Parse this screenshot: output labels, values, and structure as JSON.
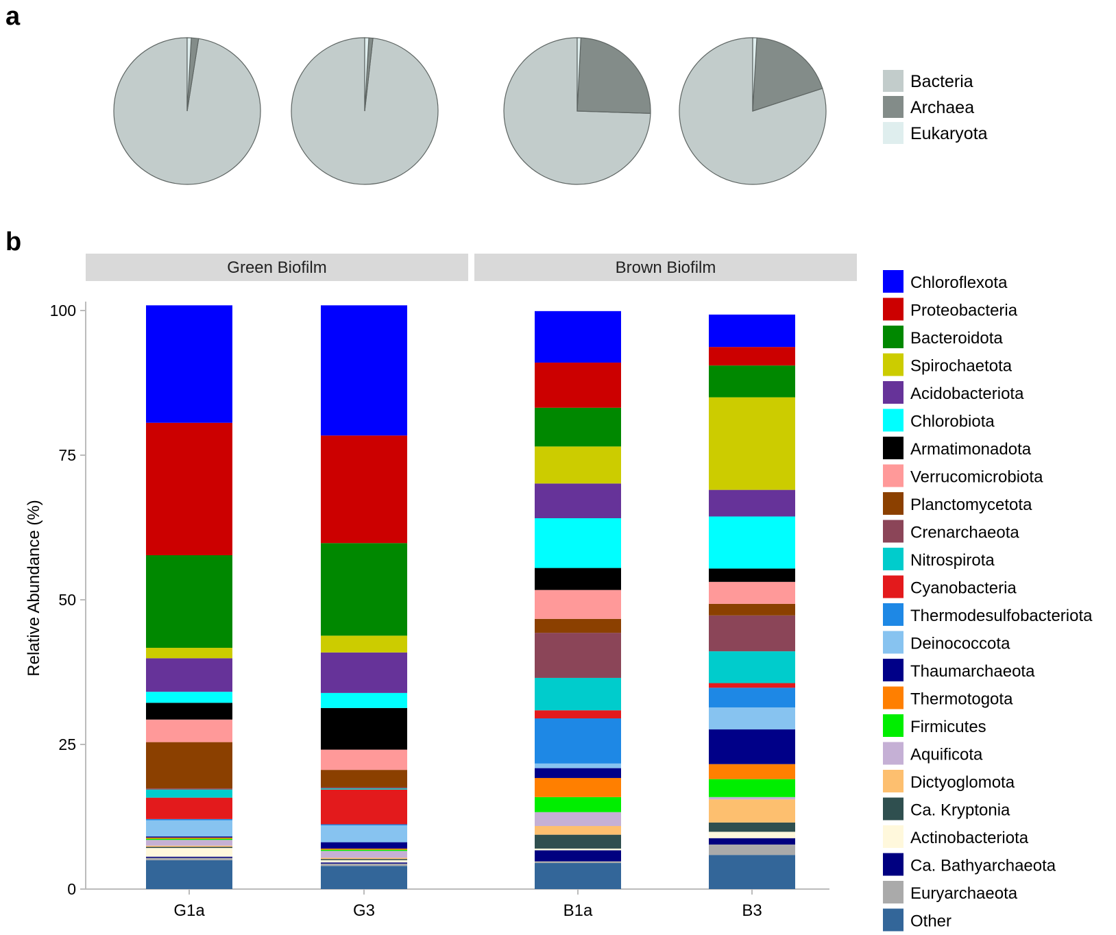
{
  "panel_labels": [
    "a",
    "b"
  ],
  "colors": {
    "Bacteria": "#c2cccb",
    "Archaea": "#838c89",
    "Eukaryota": "#dfeeee",
    "Chloroflexota": "#0000ff",
    "Proteobacteria": "#cc0000",
    "Bacteroidota": "#008800",
    "Spirochaetota": "#cccc00",
    "Acidobacteriota": "#663399",
    "Chlorobiota": "#00ffff",
    "Armatimonadota": "#000000",
    "Verrucomicrobiota": "#ff9999",
    "Planctomycetota": "#8b4000",
    "Crenarchaeota": "#8b4558",
    "Nitrospirota": "#00cccc",
    "Cyanobacteria": "#e31a1c",
    "Thermodesulfobacteriota": "#1e88e5",
    "Deinococcota": "#87c3f0",
    "Thaumarchaeota": "#000088",
    "Thermotogota": "#ff7f00",
    "Firmicutes": "#00ee00",
    "Aquificota": "#c5b0d5",
    "Dictyoglomota": "#fdbf6f",
    "Ca. Kryptonia": "#2f4f4f",
    "Actinobacteriota": "#fff8dc",
    "Ca. Bathyarchaeota": "#000080",
    "Euryarchaeota": "#aaaaaa",
    "Other": "#336699"
  },
  "chart_data": [
    {
      "type": "pie",
      "panel": "a",
      "legend": [
        "Bacteria",
        "Archaea",
        "Eukaryota"
      ],
      "series": [
        {
          "name": "G1a",
          "values": {
            "Bacteria": 97.5,
            "Archaea": 1.6,
            "Eukaryota": 0.9
          }
        },
        {
          "name": "G3",
          "values": {
            "Bacteria": 98.2,
            "Archaea": 0.9,
            "Eukaryota": 0.9
          }
        },
        {
          "name": "B1a",
          "values": {
            "Bacteria": 74.5,
            "Archaea": 24.7,
            "Eukaryota": 0.8
          }
        },
        {
          "name": "B3",
          "values": {
            "Bacteria": 80.0,
            "Archaea": 19.1,
            "Eukaryota": 0.9
          }
        }
      ]
    },
    {
      "type": "bar",
      "panel": "b",
      "stacked": true,
      "facets": [
        {
          "label": "Green Biofilm",
          "samples": [
            "G1a",
            "G3"
          ]
        },
        {
          "label": "Brown Biofilm",
          "samples": [
            "B1a",
            "B3"
          ]
        }
      ],
      "categories": [
        "G1a",
        "G3",
        "B1a",
        "B3"
      ],
      "ylabel": "Relative Abundance (%)",
      "ylim": [
        0,
        100
      ],
      "yticks": [
        "0",
        "25",
        "50",
        "75",
        "100"
      ],
      "legend": [
        "Chloroflexota",
        "Proteobacteria",
        "Bacteroidota",
        "Spirochaetota",
        "Acidobacteriota",
        "Chlorobiota",
        "Armatimonadota",
        "Verrucomicrobiota",
        "Planctomycetota",
        "Crenarchaeota",
        "Nitrospirota",
        "Cyanobacteria",
        "Thermodesulfobacteriota",
        "Deinococcota",
        "Thaumarchaeota",
        "Thermotogota",
        "Firmicutes",
        "Aquificota",
        "Dictyoglomota",
        "Ca. Kryptonia",
        "Actinobacteriota",
        "Ca. Bathyarchaeota",
        "Euryarchaeota",
        "Other"
      ],
      "stack_order_bottom_up": [
        "Other",
        "Euryarchaeota",
        "Ca. Bathyarchaeota",
        "Actinobacteriota",
        "Ca. Kryptonia",
        "Dictyoglomota",
        "Aquificota",
        "Firmicutes",
        "Thermotogota",
        "Thaumarchaeota",
        "Deinococcota",
        "Thermodesulfobacteriota",
        "Cyanobacteria",
        "Nitrospirota",
        "Crenarchaeota",
        "Planctomycetota",
        "Verrucomicrobiota",
        "Armatimonadota",
        "Chlorobiota",
        "Acidobacteriota",
        "Spirochaetota",
        "Bacteroidota",
        "Proteobacteria",
        "Chloroflexota"
      ],
      "series": [
        {
          "name": "Other",
          "values": [
            5.0,
            4.0,
            4.5,
            5.9
          ]
        },
        {
          "name": "Euryarchaeota",
          "values": [
            0.4,
            0.4,
            0.3,
            1.8
          ]
        },
        {
          "name": "Ca. Bathyarchaeota",
          "values": [
            0.2,
            0.2,
            1.9,
            1.1
          ]
        },
        {
          "name": "Actinobacteriota",
          "values": [
            1.5,
            0.4,
            0.3,
            1.1
          ]
        },
        {
          "name": "Ca. Kryptonia",
          "values": [
            0.2,
            0.2,
            2.4,
            1.6
          ]
        },
        {
          "name": "Dictyoglomota",
          "values": [
            0.2,
            0.2,
            1.5,
            4.0
          ]
        },
        {
          "name": "Aquificota",
          "values": [
            1.0,
            1.2,
            2.4,
            0.4
          ]
        },
        {
          "name": "Firmicutes",
          "values": [
            0.2,
            0.2,
            2.6,
            3.1
          ]
        },
        {
          "name": "Thermotogota",
          "values": [
            0.2,
            0.2,
            3.3,
            2.6
          ]
        },
        {
          "name": "Thaumarchaeota",
          "values": [
            0.2,
            1.1,
            1.7,
            6.0
          ]
        },
        {
          "name": "Deinococcota",
          "values": [
            2.8,
            2.9,
            0.8,
            3.8
          ]
        },
        {
          "name": "Thermodesulfobacteriota",
          "values": [
            0.2,
            0.2,
            7.8,
            3.4
          ]
        },
        {
          "name": "Cyanobacteria",
          "values": [
            3.7,
            6.0,
            1.4,
            0.8
          ]
        },
        {
          "name": "Nitrospirota",
          "values": [
            1.4,
            0.2,
            5.6,
            5.5
          ]
        },
        {
          "name": "Crenarchaeota",
          "values": [
            0.2,
            0.2,
            7.8,
            6.2
          ]
        },
        {
          "name": "Planctomycetota",
          "values": [
            8.0,
            3.0,
            2.4,
            2.0
          ]
        },
        {
          "name": "Verrucomicrobiota",
          "values": [
            3.9,
            3.5,
            5.0,
            3.8
          ]
        },
        {
          "name": "Armatimonadota",
          "values": [
            2.9,
            7.2,
            3.8,
            2.3
          ]
        },
        {
          "name": "Chlorobiota",
          "values": [
            1.9,
            2.6,
            8.6,
            9.0
          ]
        },
        {
          "name": "Acidobacteriota",
          "values": [
            5.8,
            7.0,
            6.0,
            4.6
          ]
        },
        {
          "name": "Spirochaetota",
          "values": [
            1.8,
            2.9,
            6.4,
            16.0
          ]
        },
        {
          "name": "Bacteroidota",
          "values": [
            16.0,
            16.0,
            6.7,
            5.5
          ]
        },
        {
          "name": "Proteobacteria",
          "values": [
            22.9,
            18.6,
            7.8,
            3.2
          ]
        },
        {
          "name": "Chloroflexota",
          "values": [
            20.3,
            22.5,
            8.9,
            5.6
          ]
        }
      ]
    }
  ]
}
